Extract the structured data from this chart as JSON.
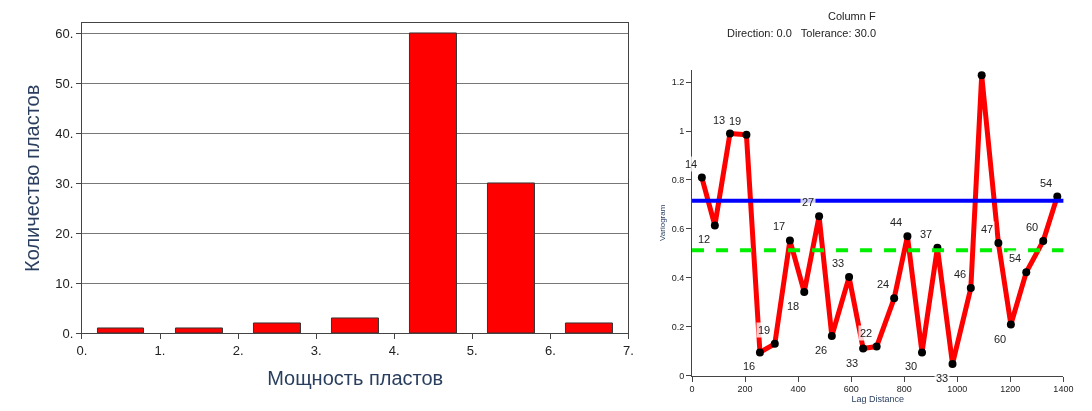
{
  "chart_data": [
    {
      "type": "histogram",
      "xlabel": "Мощность пластов",
      "ylabel": "Количество пластов",
      "bins": [
        0,
        1,
        2,
        3,
        4,
        5,
        6,
        7
      ],
      "values": [
        1,
        1,
        2,
        3,
        60,
        30,
        2
      ],
      "color": "#ff0000",
      "xlim": [
        0,
        7
      ],
      "xticks": [
        {
          "value": 0,
          "label": "0."
        },
        {
          "value": 1,
          "label": "1."
        },
        {
          "value": 2,
          "label": "2."
        },
        {
          "value": 3,
          "label": "3."
        },
        {
          "value": 4,
          "label": "4."
        },
        {
          "value": 5,
          "label": "5."
        },
        {
          "value": 6,
          "label": "6."
        },
        {
          "value": 7,
          "label": "7."
        }
      ],
      "ylim": [
        0,
        62
      ],
      "yticks": [
        {
          "value": 0,
          "label": "0."
        },
        {
          "value": 10,
          "label": "10."
        },
        {
          "value": 20,
          "label": "20."
        },
        {
          "value": 30,
          "label": "30."
        },
        {
          "value": 40,
          "label": "40."
        },
        {
          "value": 50,
          "label": "50."
        },
        {
          "value": 60,
          "label": "60."
        }
      ],
      "grid": "y"
    },
    {
      "type": "line",
      "title": "Column F",
      "subtitle": "Direction: 0.0   Tolerance: 30.0",
      "xlabel": "Lag Distance",
      "ylabel": "Variogram",
      "x": [
        37,
        86,
        143,
        205,
        256,
        312,
        369,
        423,
        479,
        527,
        592,
        645,
        696,
        762,
        812,
        867,
        925,
        982,
        1051,
        1092,
        1155,
        1202,
        1260,
        1324,
        1377
      ],
      "series": [
        {
          "color": "#ff0000",
          "values": [
            0.81,
            0.614,
            0.99,
            0.985,
            0.095,
            0.13,
            0.553,
            0.342,
            0.652,
            0.162,
            0.403,
            0.111,
            0.119,
            0.316,
            0.57,
            0.095,
            0.523,
            0.048,
            0.358,
            1.228,
            0.542,
            0.209,
            0.423,
            0.551,
            0.732
          ]
        }
      ],
      "xlim": [
        0,
        1400
      ],
      "xticks": [
        0,
        200,
        400,
        600,
        800,
        1000,
        1200,
        1400
      ],
      "ylim": [
        0,
        1.25
      ],
      "yticks": [
        0,
        0.2,
        0.4,
        0.6,
        0.8,
        1,
        1.2
      ],
      "ref_lines": [
        {
          "axis": "y",
          "value": 0.715,
          "color": "#0000ff",
          "line_style": "solid"
        },
        {
          "axis": "y",
          "value": 0.513,
          "color": "#00ee00",
          "line_style": "dashed"
        }
      ],
      "annotations": [
        {
          "text": "14",
          "x": 37,
          "y": 0.81
        },
        {
          "text": "12",
          "x": 86,
          "y": 0.614
        },
        {
          "text": "13",
          "x": 143,
          "y": 0.99
        },
        {
          "text": "19",
          "x": 205,
          "y": 0.985
        },
        {
          "text": "16",
          "x": 256,
          "y": 0.095
        },
        {
          "text": "19",
          "x": 312,
          "y": 0.13
        },
        {
          "text": "17",
          "x": 369,
          "y": 0.553
        },
        {
          "text": "18",
          "x": 423,
          "y": 0.342
        },
        {
          "text": "27",
          "x": 479,
          "y": 0.652
        },
        {
          "text": "26",
          "x": 527,
          "y": 0.162
        },
        {
          "text": "33",
          "x": 592,
          "y": 0.403
        },
        {
          "text": "33",
          "x": 645,
          "y": 0.111
        },
        {
          "text": "22",
          "x": 696,
          "y": 0.119
        },
        {
          "text": "24",
          "x": 762,
          "y": 0.316
        },
        {
          "text": "44",
          "x": 812,
          "y": 0.57
        },
        {
          "text": "30",
          "x": 867,
          "y": 0.095
        },
        {
          "text": "37",
          "x": 925,
          "y": 0.523
        },
        {
          "text": "33",
          "x": 982,
          "y": 0.048
        },
        {
          "text": "46",
          "x": 1051,
          "y": 0.358
        },
        {
          "text": "47",
          "x": 1155,
          "y": 0.542
        },
        {
          "text": "60",
          "x": 1202,
          "y": 0.209
        },
        {
          "text": "54",
          "x": 1260,
          "y": 0.423
        },
        {
          "text": "60",
          "x": 1324,
          "y": 0.551
        },
        {
          "text": "54",
          "x": 1377,
          "y": 0.732
        }
      ],
      "marker": "circle",
      "line_style": "solid",
      "grid": false
    }
  ]
}
